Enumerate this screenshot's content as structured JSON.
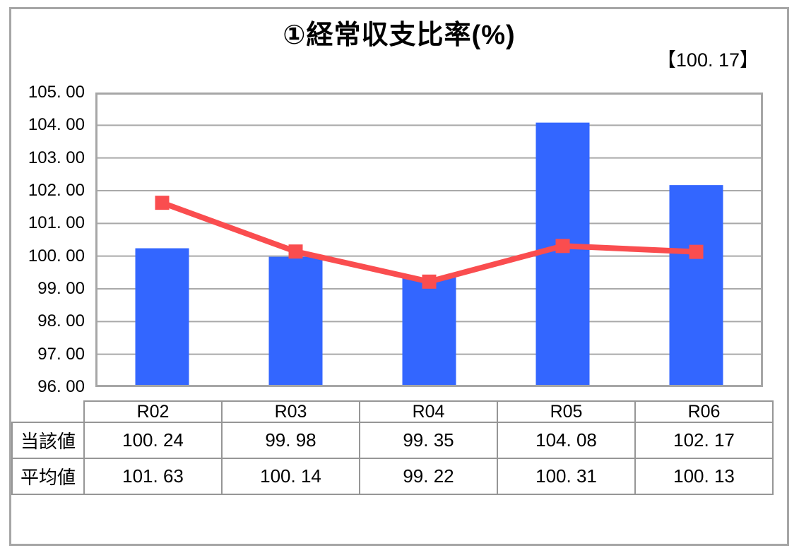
{
  "frame": {
    "border_color": "#A6A6A6",
    "background": "#FFFFFF"
  },
  "chart_data": {
    "type": "bar+line",
    "title": "①経常収支比率(%)",
    "annotation": "【100. 17】",
    "annotation_value": 100.17,
    "categories": [
      "R02",
      "R03",
      "R04",
      "R05",
      "R06"
    ],
    "series": [
      {
        "name": "当該値",
        "type": "bar",
        "color": "#3366FF",
        "values": [
          100.24,
          99.98,
          99.35,
          104.08,
          102.17
        ]
      },
      {
        "name": "平均値",
        "type": "line",
        "color": "#FA4D4F",
        "values": [
          101.63,
          100.14,
          99.22,
          100.31,
          100.13
        ]
      }
    ],
    "ylim": [
      96,
      105
    ],
    "ytick_step": 1.0,
    "ytick_labels": [
      "105. 00",
      "104. 00",
      "103. 00",
      "102. 00",
      "101. 00",
      "100. 00",
      "99. 00",
      "98. 00",
      "97. 00",
      "96. 00"
    ],
    "grid": true,
    "gridline_color": "#A9A9A9",
    "axis_border_color": "#A6A6A6",
    "legend": "none"
  },
  "table": {
    "corner_label": "",
    "header": [
      "R02",
      "R03",
      "R04",
      "R05",
      "R06"
    ],
    "rows": [
      {
        "label": "当該値",
        "cells": [
          "100. 24",
          "99. 98",
          "99. 35",
          "104. 08",
          "102. 17"
        ]
      },
      {
        "label": "平均値",
        "cells": [
          "101. 63",
          "100. 14",
          "99. 22",
          "100. 31",
          "100. 13"
        ]
      }
    ]
  }
}
